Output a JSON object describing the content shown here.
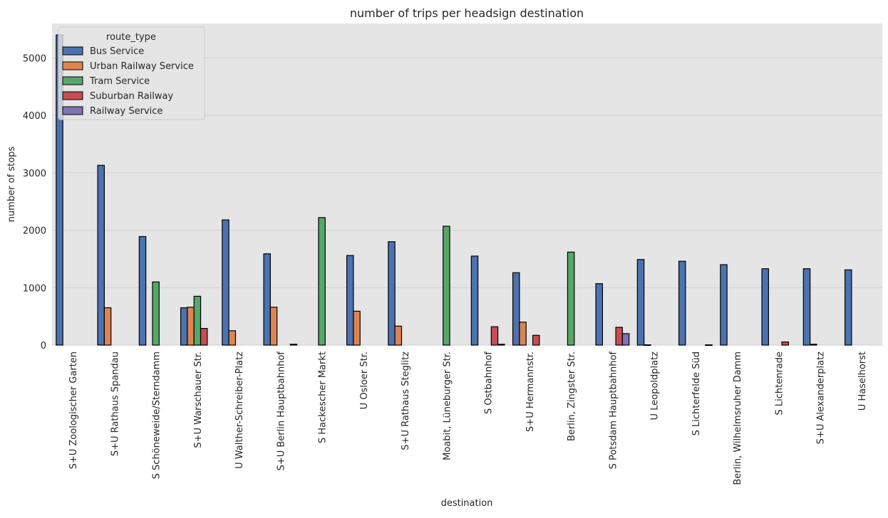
{
  "chart_data": {
    "type": "bar",
    "title": "number of trips per headsign destination",
    "xlabel": "destination",
    "ylabel": "number of stops",
    "ylim": [
      0,
      5600
    ],
    "yticks": [
      0,
      1000,
      2000,
      3000,
      4000,
      5000
    ],
    "grid": "horizontal",
    "legend_title": "route_type",
    "legend_position": "top-left",
    "categories": [
      "S+U Zoologischer Garten",
      "S+U Rathaus Spandau",
      "S Schöneweide/Sterndamm",
      "S+U Warschauer Str.",
      "U Walther-Schreiber-Platz",
      "S+U Berlin Hauptbahnhof",
      "S Hackescher Markt",
      "U Osloer Str.",
      "S+U Rathaus Steglitz",
      "Moabit, Lüneburger Str.",
      "S Ostbahnhof",
      "S+U Hermannstr.",
      "Berlin, Zingster Str.",
      "S Potsdam Hauptbahnhof",
      "U Leopoldplatz",
      "S Lichterfelde Süd",
      "Berlin, Wilhelmsruher Damm",
      "S Lichtenrade",
      "S+U Alexanderplatz",
      "U Haselhorst"
    ],
    "series": [
      {
        "name": "Bus Service",
        "color": "#4c72b0",
        "values": [
          5400,
          3130,
          1890,
          650,
          2180,
          1590,
          0,
          1560,
          1800,
          0,
          1550,
          1260,
          0,
          1070,
          1490,
          1460,
          1400,
          1330,
          1330,
          1310
        ]
      },
      {
        "name": "Urban Railway Service",
        "color": "#dd8452",
        "values": [
          0,
          650,
          0,
          660,
          250,
          660,
          0,
          590,
          330,
          0,
          0,
          400,
          0,
          0,
          5,
          0,
          0,
          0,
          15,
          0
        ]
      },
      {
        "name": "Tram Service",
        "color": "#55a868",
        "values": [
          0,
          0,
          1100,
          850,
          0,
          0,
          2220,
          0,
          0,
          2070,
          0,
          0,
          1620,
          0,
          0,
          0,
          0,
          0,
          0,
          0
        ]
      },
      {
        "name": "Suburban Railway",
        "color": "#c44e52",
        "values": [
          0,
          0,
          0,
          290,
          0,
          0,
          0,
          0,
          0,
          0,
          320,
          170,
          0,
          310,
          0,
          0,
          0,
          55,
          0,
          0
        ]
      },
      {
        "name": "Railway Service",
        "color": "#8172b3",
        "values": [
          0,
          0,
          0,
          0,
          0,
          15,
          0,
          0,
          0,
          0,
          15,
          0,
          0,
          200,
          0,
          5,
          0,
          0,
          0,
          0
        ]
      }
    ]
  }
}
